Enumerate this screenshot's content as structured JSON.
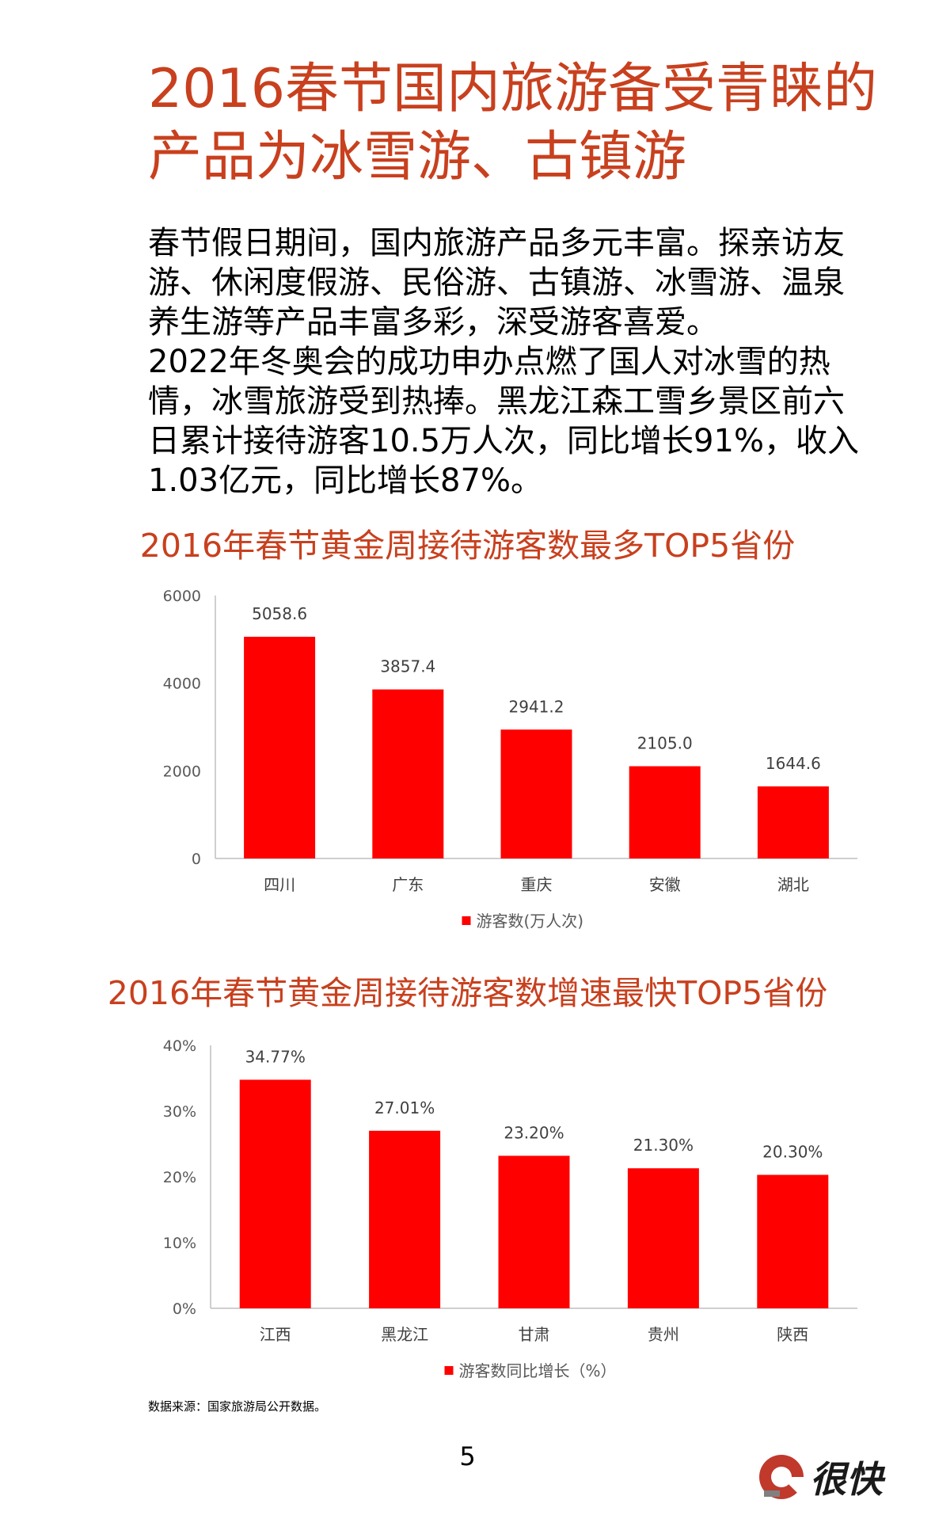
{
  "title_lines": [
    "2016春节国内旅游备受青睐的",
    "产品为冰雪游、古镇游"
  ],
  "body_lines": [
    "春节假日期间，国内旅游产品多元丰富。探亲访友",
    "游、休闲度假游、民俗游、古镇游、冰雪游、温泉",
    "养生游等产品丰富多彩，深受游客喜爱。",
    "2022年冬奥会的成功申办点燃了国人对冰雪的热",
    "情，冰雪旅游受到热捧。黑龙江森工雪乡景区前六",
    "日累计接待游客10.5万人次，同比增长91%，收入",
    "1.03亿元，同比增长87%。"
  ],
  "chart_data": [
    {
      "type": "bar",
      "title": "2016年春节黄金周接待游客数最多TOP5省份",
      "categories": [
        "四川",
        "广东",
        "重庆",
        "安徽",
        "湖北"
      ],
      "series": [
        {
          "name": "游客数(万人次)",
          "values": [
            5058.6,
            3857.4,
            2941.2,
            2105.0,
            1644.6
          ]
        }
      ],
      "value_labels": [
        "5058.6",
        "3857.4",
        "2941.2",
        "2105.0",
        "1644.6"
      ],
      "yticks": [
        "0",
        "2000",
        "4000",
        "6000"
      ],
      "ylim": [
        0,
        6000
      ],
      "legend": "bottom",
      "grid": false,
      "color": "#ff0000"
    },
    {
      "type": "bar",
      "title": "2016年春节黄金周接待游客数增速最快TOP5省份",
      "categories": [
        "江西",
        "黑龙江",
        "甘肃",
        "贵州",
        "陕西"
      ],
      "series": [
        {
          "name": "游客数同比增长（%）",
          "values": [
            34.77,
            27.01,
            23.2,
            21.3,
            20.3
          ]
        }
      ],
      "value_labels": [
        "34.77%",
        "27.01%",
        "23.20%",
        "21.30%",
        "20.30%"
      ],
      "yticks": [
        "0%",
        "10%",
        "20%",
        "30%",
        "40%"
      ],
      "ylim": [
        0,
        40
      ],
      "legend": "bottom",
      "grid": false,
      "color": "#ff0000"
    }
  ],
  "source": "数据来源：国家旅游局公开数据。",
  "page_number": "5",
  "logo_text": "很快",
  "colors": {
    "title": "#c8401e",
    "bar": "#ff0000",
    "logo": "#c0392b"
  }
}
